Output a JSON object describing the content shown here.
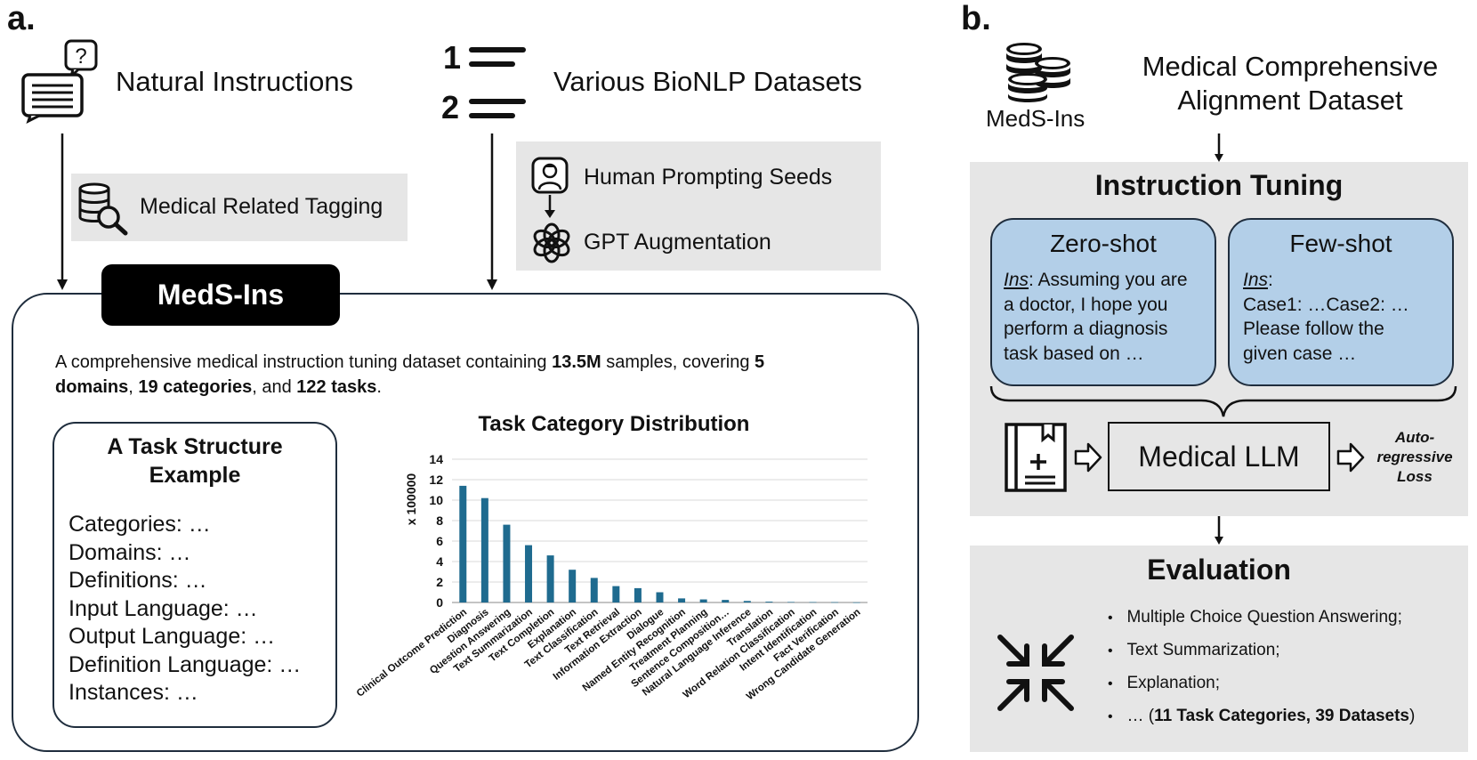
{
  "panel_a": {
    "label": "a.",
    "natural_instructions": "Natural Instructions",
    "bionlp": "Various BioNLP Datasets",
    "list_numbers": [
      "1",
      "2"
    ],
    "medical_tagging": "Medical Related Tagging",
    "human_seeds": "Human Prompting Seeds",
    "gpt_aug": "GPT Augmentation",
    "meds_ins_tab": "MedS-Ins",
    "desc_parts": {
      "p1": "A comprehensive medical instruction tuning dataset containing ",
      "b1": "13.5M",
      "p2": " samples, covering ",
      "b2a": "5",
      "b2b": "domains",
      "p3": ", ",
      "b3": "19 categories",
      "p4": ", and ",
      "b4": "122 tasks",
      "p5": "."
    },
    "task_structure": {
      "title_line1": "A Task Structure",
      "title_line2": "Example",
      "lines": [
        "Categories: …",
        "Domains: …",
        "Definitions: …",
        "Input Language: …",
        "Output Language: …",
        "Definition Language: …",
        "Instances: …"
      ]
    }
  },
  "chart_data": {
    "type": "bar",
    "title": "Task Category Distribution",
    "ylabel": "x 100000",
    "xlabel": "",
    "ylim": [
      0,
      14
    ],
    "yticks": [
      0,
      2,
      4,
      6,
      8,
      10,
      12,
      14
    ],
    "grid": true,
    "categories": [
      "Clinical Outcome Prediction",
      "Diagnosis",
      "Question Answering",
      "Text Summarization",
      "Text Completion",
      "Explanation",
      "Text Classification",
      "Text Retrieval",
      "Information Extraction",
      "Dialogue",
      "Named Entity Recognition",
      "Treatment Planning",
      "Sentence Composition…",
      "Natural Language Inference",
      "Translation",
      "Word Relation Classification",
      "Intent Identification",
      "Fact Verification",
      "Wrong Candidate Generation"
    ],
    "values": [
      11.4,
      10.2,
      7.6,
      5.6,
      4.6,
      3.2,
      2.4,
      1.6,
      1.4,
      1.0,
      0.4,
      0.3,
      0.25,
      0.15,
      0.08,
      0.05,
      0.04,
      0.03,
      0.01
    ],
    "bar_color": "#1f6b8f"
  },
  "panel_b": {
    "label": "b.",
    "meds_ins": "MedS-Ins",
    "dataset_line1": "Medical Comprehensive",
    "dataset_line2": "Alignment Dataset",
    "instruction_tuning": "Instruction Tuning",
    "zero_shot": {
      "title": "Zero-shot",
      "ins": "Ins",
      "line1": ":  Assuming you are",
      "line2": "a doctor, I hope you",
      "line3": "perform a diagnosis",
      "line4": "task based on …"
    },
    "few_shot": {
      "title": "Few-shot",
      "ins": "Ins",
      "line1": ":",
      "line2": "Case1: …Case2: …",
      "line3": "Please follow the",
      "line4": "given case …"
    },
    "medical_llm": "Medical LLM",
    "loss_line1": "Auto-",
    "loss_line2": "regressive",
    "loss_line3": "Loss",
    "evaluation": "Evaluation",
    "eval_items": [
      "Multiple Choice Question Answering;",
      "Text Summarization;",
      "Explanation;"
    ],
    "eval_last_pre": "… (",
    "eval_last_bold": "11 Task Categories, 39 Datasets",
    "eval_last_post": ")",
    "bullet": "•"
  }
}
